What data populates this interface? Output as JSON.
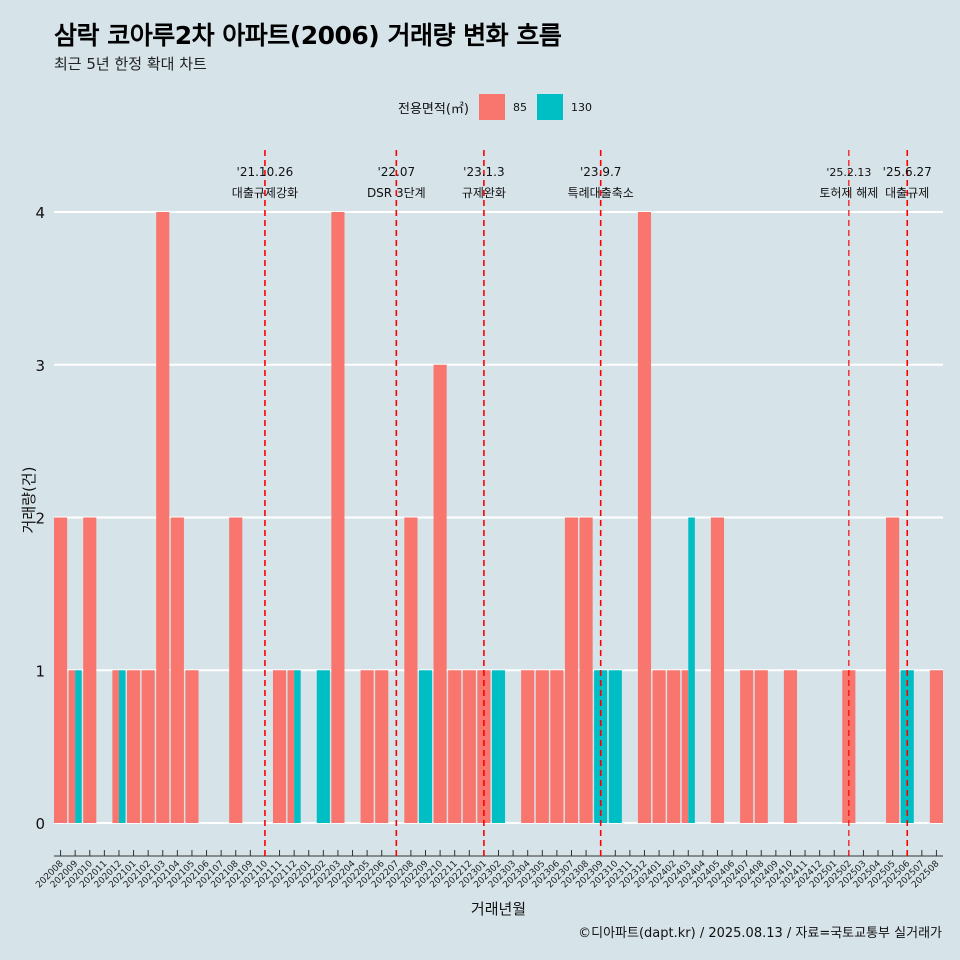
{
  "title": "삼락 코아루2차 아파트(2006) 거래량 변화 흐름",
  "subtitle": "최근 5년 한정 확대 차트",
  "legend": {
    "title": "전용면적(㎡)",
    "items": [
      {
        "label": "85",
        "color": "#f8766d"
      },
      {
        "label": "130",
        "color": "#00bfc4"
      }
    ]
  },
  "footer": "©디아파트(dapt.kr) / 2025.08.13 / 자료=국토교통부 실거래가",
  "chart_data": {
    "type": "bar",
    "xlabel": "거래년월",
    "ylabel": "거래량(건)",
    "ylim": [
      0,
      4
    ],
    "yticks": [
      0,
      1,
      2,
      3,
      4
    ],
    "categories": [
      "202008",
      "202009",
      "202010",
      "202011",
      "202012",
      "202101",
      "202102",
      "202103",
      "202104",
      "202105",
      "202106",
      "202107",
      "202108",
      "202109",
      "202110",
      "202111",
      "202112",
      "202201",
      "202202",
      "202203",
      "202204",
      "202205",
      "202206",
      "202207",
      "202208",
      "202209",
      "202210",
      "202211",
      "202212",
      "202301",
      "202302",
      "202303",
      "202304",
      "202305",
      "202306",
      "202307",
      "202308",
      "202309",
      "202310",
      "202311",
      "202312",
      "202401",
      "202402",
      "202403",
      "202404",
      "202405",
      "202406",
      "202407",
      "202408",
      "202409",
      "202410",
      "202411",
      "202412",
      "202501",
      "202502",
      "202503",
      "202504",
      "202505",
      "202506",
      "202507",
      "202508"
    ],
    "series": [
      {
        "name": "85",
        "color": "#f8766d",
        "values": [
          2,
          1,
          2,
          0,
          1,
          1,
          1,
          4,
          2,
          1,
          0,
          0,
          2,
          0,
          0,
          1,
          1,
          0,
          0,
          4,
          0,
          1,
          1,
          0,
          2,
          0,
          3,
          1,
          1,
          1,
          0,
          0,
          1,
          1,
          1,
          2,
          2,
          0,
          0,
          0,
          4,
          1,
          1,
          1,
          0,
          2,
          0,
          1,
          1,
          0,
          1,
          0,
          0,
          0,
          1,
          0,
          0,
          2,
          0,
          0,
          1
        ]
      },
      {
        "name": "130",
        "color": "#00bfc4",
        "values": [
          0,
          1,
          0,
          0,
          1,
          0,
          0,
          0,
          0,
          0,
          0,
          0,
          0,
          0,
          0,
          0,
          1,
          0,
          1,
          0,
          0,
          0,
          0,
          0,
          0,
          1,
          0,
          0,
          0,
          0,
          1,
          0,
          0,
          0,
          0,
          0,
          0,
          1,
          1,
          0,
          0,
          0,
          0,
          2,
          0,
          0,
          0,
          0,
          0,
          0,
          0,
          0,
          0,
          0,
          0,
          0,
          0,
          0,
          1,
          0,
          0
        ]
      }
    ],
    "events": [
      {
        "date": "'21.10.26",
        "label": "대출규제강화",
        "month": "202110"
      },
      {
        "date": "'22.07",
        "label": "DSR 3단계",
        "month": "202207"
      },
      {
        "date": "'23.1.3",
        "label": "규제완화",
        "month": "202301"
      },
      {
        "date": "'23.9.7",
        "label": "특례대출축소",
        "month": "202309"
      },
      {
        "date": "'25.2.13",
        "label": "토허제 해제",
        "month": "202502"
      },
      {
        "date": "'25.6.27",
        "label": "대출규제",
        "month": "202506"
      }
    ]
  }
}
